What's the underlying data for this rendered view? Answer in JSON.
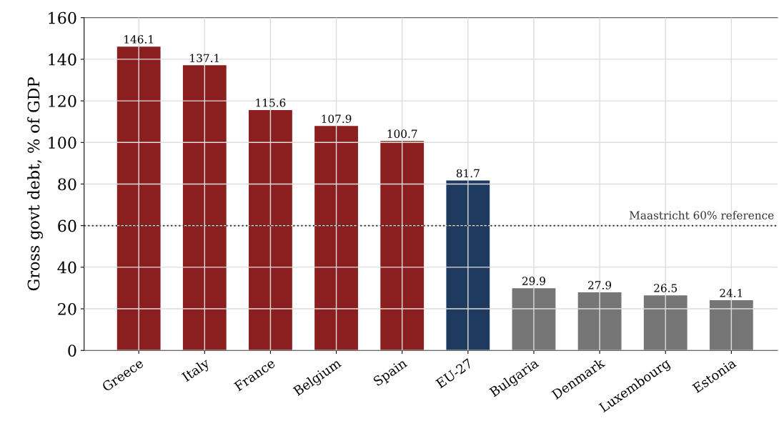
{
  "chart_data": {
    "type": "bar",
    "ylabel": "Gross govt debt, % of GDP",
    "categories": [
      "Greece",
      "Italy",
      "France",
      "Belgium",
      "Spain",
      "EU-27",
      "Bulgaria",
      "Denmark",
      "Luxembourg",
      "Estonia"
    ],
    "values": [
      146.1,
      137.1,
      115.6,
      107.9,
      100.7,
      81.7,
      29.9,
      27.9,
      26.5,
      24.1
    ],
    "colors": [
      "#8b1e1e",
      "#8b1e1e",
      "#8b1e1e",
      "#8b1e1e",
      "#8b1e1e",
      "#1f3a5f",
      "#767676",
      "#767676",
      "#767676",
      "#767676"
    ],
    "ylim": [
      0,
      160
    ],
    "yticks": [
      0,
      20,
      40,
      60,
      80,
      100,
      120,
      140,
      160
    ],
    "ref_lines": [
      {
        "axis": "y",
        "value": 60,
        "label": "Maastricht 60% reference",
        "color": "#333333",
        "line_style": "dotted"
      }
    ],
    "data_labels": true,
    "grid": true,
    "legend": false
  }
}
